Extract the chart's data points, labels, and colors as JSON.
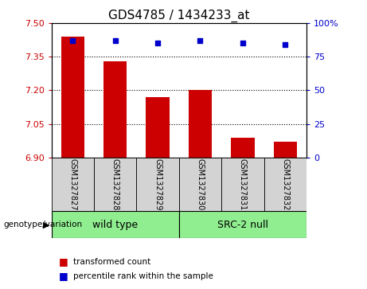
{
  "title": "GDS4785 / 1434233_at",
  "samples": [
    "GSM1327827",
    "GSM1327828",
    "GSM1327829",
    "GSM1327830",
    "GSM1327831",
    "GSM1327832"
  ],
  "bar_values": [
    7.44,
    7.33,
    7.17,
    7.2,
    6.99,
    6.97
  ],
  "percentile_values": [
    87,
    87,
    85,
    87,
    85,
    84
  ],
  "ylim_left": [
    6.9,
    7.5
  ],
  "ylim_right": [
    0,
    100
  ],
  "yticks_left": [
    6.9,
    7.05,
    7.2,
    7.35,
    7.5
  ],
  "yticks_right": [
    0,
    25,
    50,
    75,
    100
  ],
  "bar_color": "#cc0000",
  "point_color": "#0000cc",
  "bar_bottom": 6.9,
  "group_labels": [
    "wild type",
    "SRC-2 null"
  ],
  "group_ranges": [
    [
      0,
      2
    ],
    [
      3,
      5
    ]
  ],
  "group_color": "#90ee90",
  "group_label_prefix": "genotype/variation",
  "legend_items": [
    {
      "label": "transformed count",
      "color": "#cc0000"
    },
    {
      "label": "percentile rank within the sample",
      "color": "#0000cc"
    }
  ],
  "label_box_color": "#d3d3d3",
  "label_fontsize": 7.0,
  "title_fontsize": 11,
  "group_fontsize": 9
}
